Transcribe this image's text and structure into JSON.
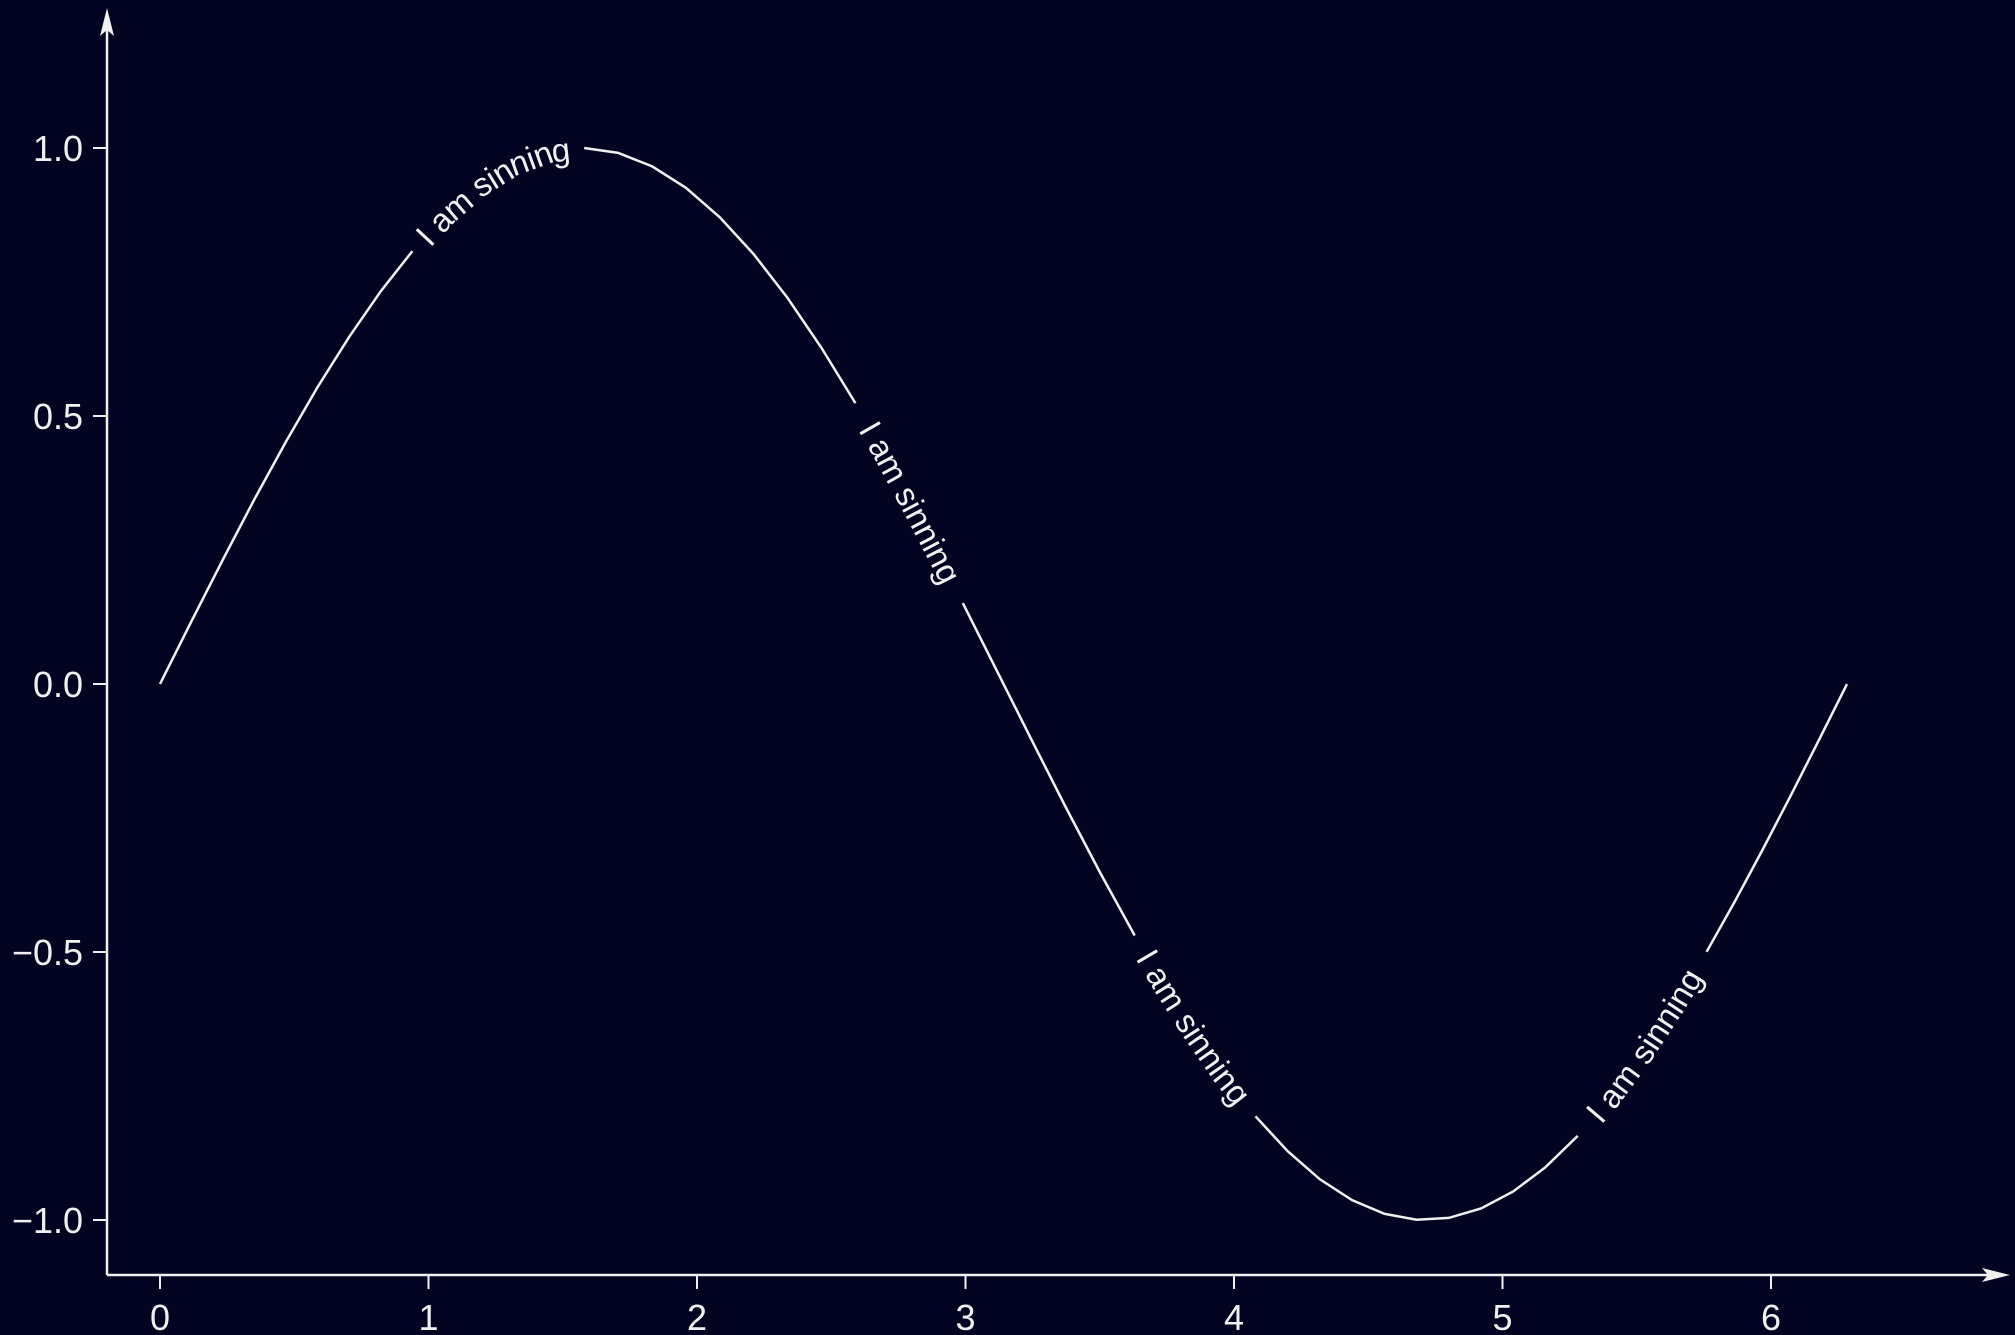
{
  "chart_data": {
    "type": "line",
    "title": "",
    "xlabel": "",
    "ylabel": "",
    "function": "sin(x)",
    "x_range": [
      0,
      6.283
    ],
    "xlim": [
      -0.2,
      6.5
    ],
    "ylim": [
      -1.1,
      1.2
    ],
    "xticks": [
      0,
      1,
      2,
      3,
      4,
      5,
      6
    ],
    "xtick_labels": [
      "0",
      "1",
      "2",
      "3",
      "4",
      "5",
      "6"
    ],
    "yticks": [
      -1.0,
      -0.5,
      0.0,
      0.5,
      1.0
    ],
    "ytick_labels": [
      "−1.0",
      "−0.5",
      "0.0",
      "0.5",
      "1.0"
    ],
    "grid": false,
    "inline_labels": [
      {
        "text": "I am sinning",
        "x_from": 0.94,
        "x_to": 1.58
      },
      {
        "text": "I am sinning",
        "x_from": 2.59,
        "x_to": 2.99
      },
      {
        "text": "I am sinning",
        "x_from": 3.63,
        "x_to": 4.08
      },
      {
        "text": "I am sinning",
        "x_from": 5.28,
        "x_to": 5.76
      }
    ],
    "colors": {
      "background": "#030422",
      "line": "#f0f0f0"
    }
  }
}
